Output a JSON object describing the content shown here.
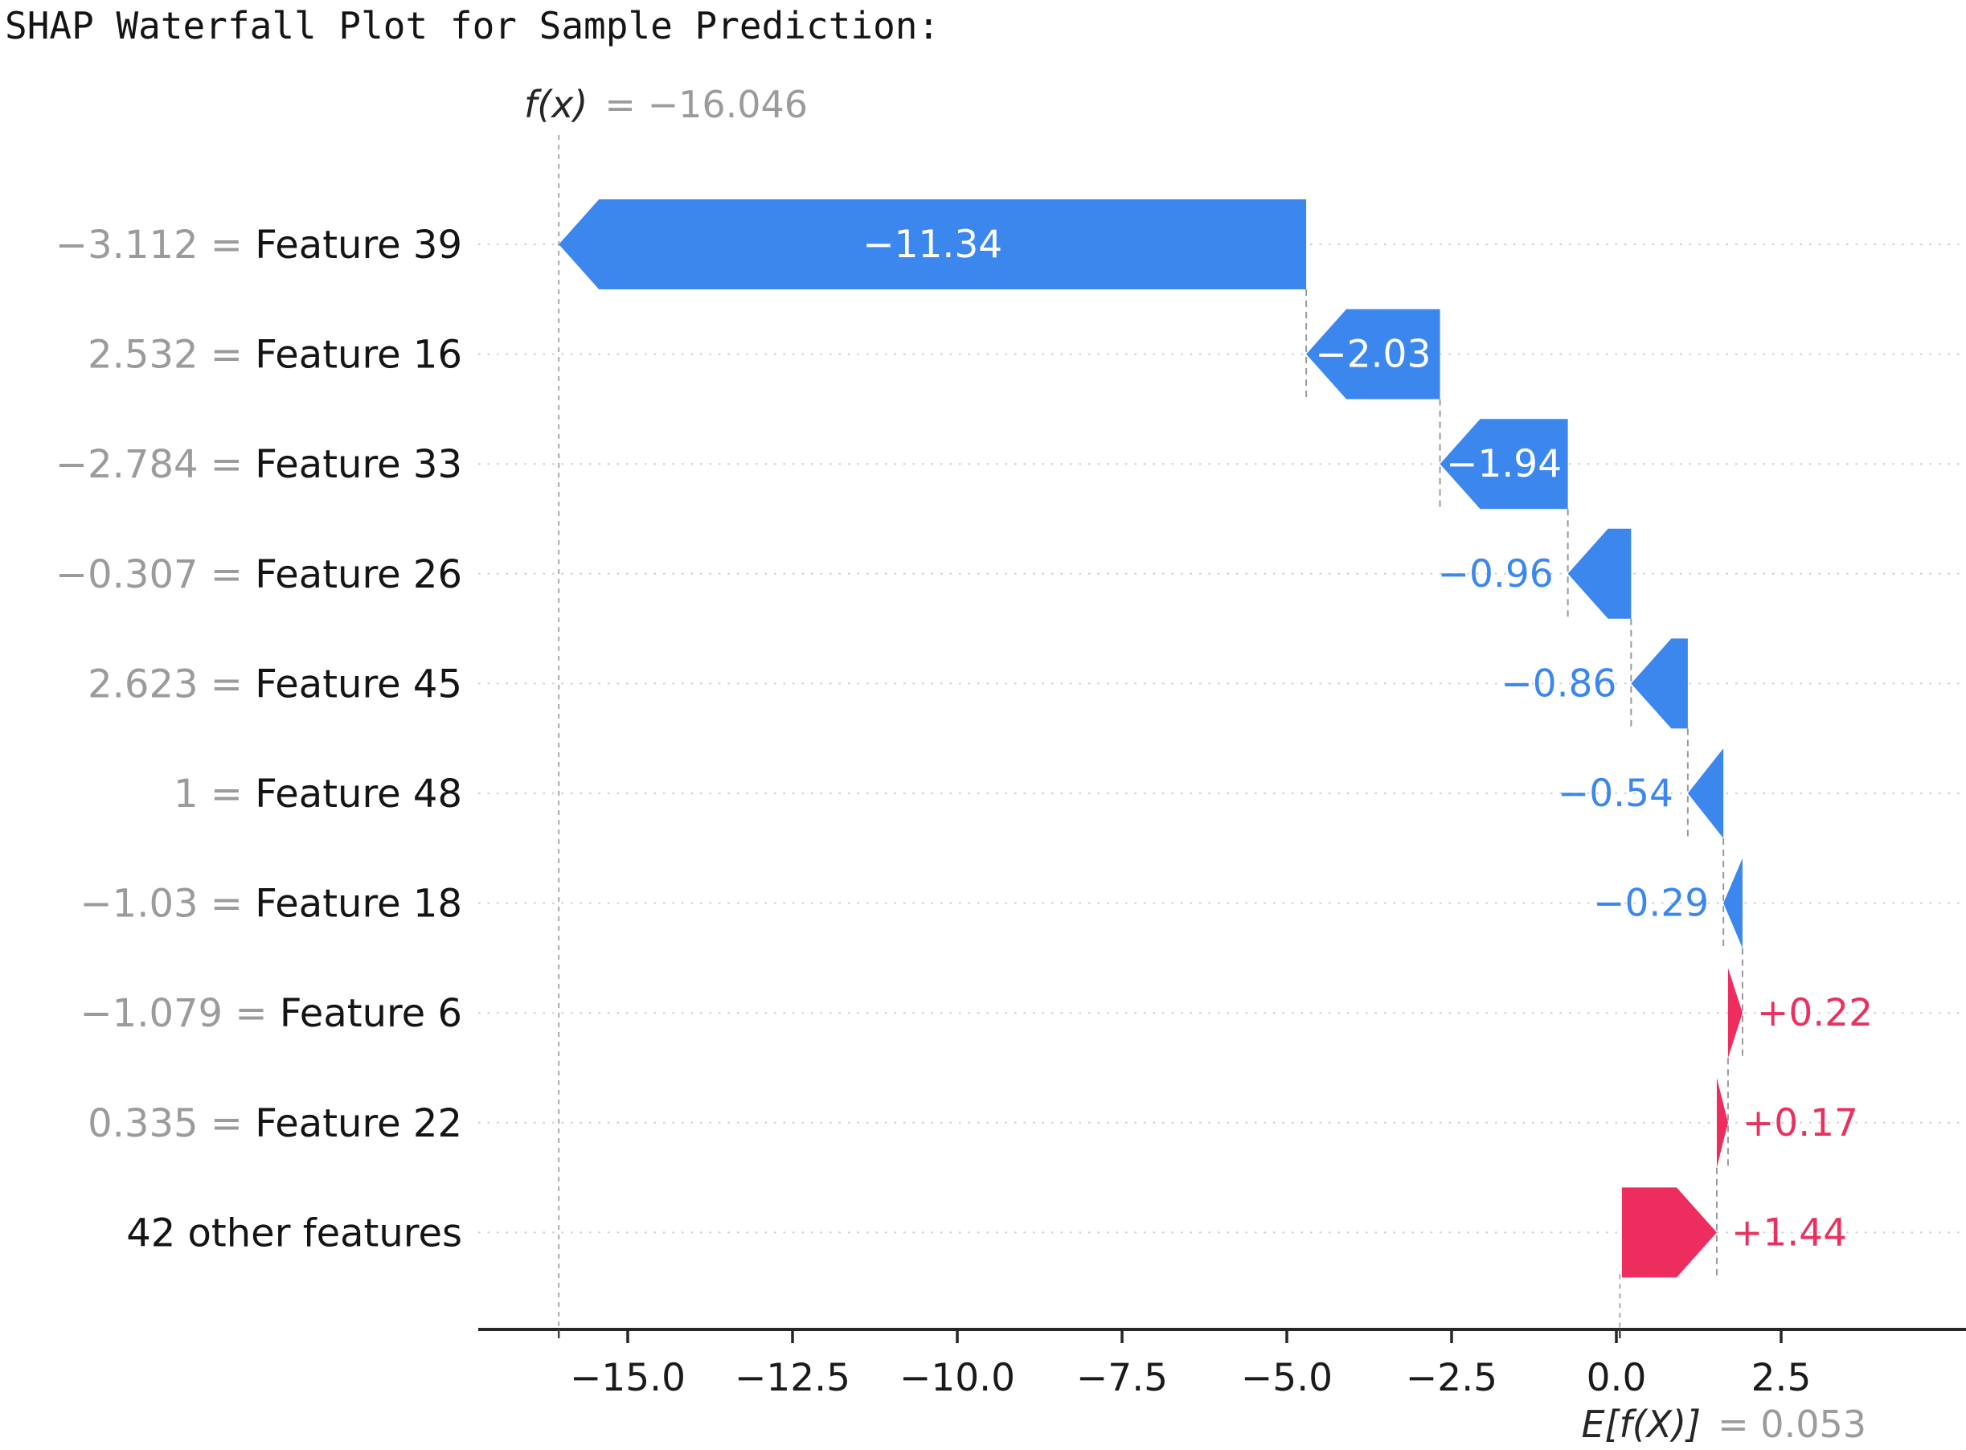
{
  "chart_data": {
    "type": "waterfall",
    "title": "SHAP Waterfall Plot for Sample Prediction:",
    "annotations": {
      "fx": {
        "name": "f(x)",
        "eq": "= −16.046",
        "value": -16.046
      },
      "ef": {
        "name": "E[f(X)]",
        "eq": "= 0.053",
        "value": 0.053
      }
    },
    "x_axis": {
      "ticks": [
        {
          "v": -15.0,
          "label": "−15.0"
        },
        {
          "v": -12.5,
          "label": "−12.5"
        },
        {
          "v": -10.0,
          "label": "−10.0"
        },
        {
          "v": -7.5,
          "label": "−7.5"
        },
        {
          "v": -5.0,
          "label": "−5.0"
        },
        {
          "v": -2.5,
          "label": "−2.5"
        },
        {
          "v": 0.0,
          "label": "0.0"
        },
        {
          "v": 2.5,
          "label": "2.5"
        }
      ],
      "xlim": [
        -17.3,
        5.3
      ],
      "grid": "dotted-horizontal-rows"
    },
    "rows": [
      {
        "feature": "Feature 39",
        "value_label": "−3.112",
        "shap": -11.34,
        "bar_label": "−11.34"
      },
      {
        "feature": "Feature 16",
        "value_label": "2.532",
        "shap": -2.03,
        "bar_label": "−2.03"
      },
      {
        "feature": "Feature 33",
        "value_label": "−2.784",
        "shap": -1.94,
        "bar_label": "−1.94"
      },
      {
        "feature": "Feature 26",
        "value_label": "−0.307",
        "shap": -0.96,
        "bar_label": "−0.96"
      },
      {
        "feature": "Feature 45",
        "value_label": "2.623",
        "shap": -0.86,
        "bar_label": "−0.86"
      },
      {
        "feature": "Feature 48",
        "value_label": "1",
        "shap": -0.54,
        "bar_label": "−0.54"
      },
      {
        "feature": "Feature 18",
        "value_label": "−1.03",
        "shap": -0.29,
        "bar_label": "−0.29"
      },
      {
        "feature": "Feature 6",
        "value_label": "−1.079",
        "shap": 0.22,
        "bar_label": "+0.22"
      },
      {
        "feature": "Feature 22",
        "value_label": "0.335",
        "shap": 0.17,
        "bar_label": "+0.17"
      },
      {
        "feature": "42 other features",
        "value_label": null,
        "shap": 1.44,
        "bar_label": "+1.44"
      }
    ],
    "colors": {
      "bar_negative": "#3c87ee",
      "bar_positive": "#ec2d5d",
      "label_negative": "#3c87ee",
      "label_positive": "#e8315e",
      "inside_label": "#ffffff",
      "value_gray": "#9b9b9b",
      "feature_text": "#141414",
      "axis": "#262626",
      "grid": "#cdcdcd",
      "connector": "#9a9a9a"
    },
    "legend": null
  }
}
